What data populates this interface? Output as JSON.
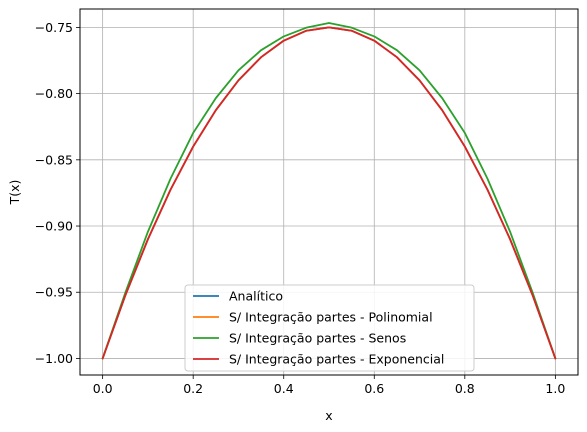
{
  "chart_data": {
    "type": "line",
    "title": "",
    "xlabel": "x",
    "ylabel": "T(x)",
    "xlim": [
      -0.05,
      1.05
    ],
    "ylim": [
      -1.0125,
      -0.7361
    ],
    "grid": true,
    "legend_position": "lower-center",
    "x_ticks": [
      {
        "value": 0.0,
        "label": "0.0"
      },
      {
        "value": 0.2,
        "label": "0.2"
      },
      {
        "value": 0.4,
        "label": "0.4"
      },
      {
        "value": 0.6,
        "label": "0.6"
      },
      {
        "value": 0.8,
        "label": "0.8"
      },
      {
        "value": 1.0,
        "label": "1.0"
      }
    ],
    "y_ticks": [
      {
        "value": -1.0,
        "label": "−1.00"
      },
      {
        "value": -0.95,
        "label": "−0.95"
      },
      {
        "value": -0.9,
        "label": "−0.90"
      },
      {
        "value": -0.85,
        "label": "−0.85"
      },
      {
        "value": -0.8,
        "label": "−0.80"
      },
      {
        "value": -0.75,
        "label": "−0.75"
      }
    ],
    "x": [
      0.0,
      0.05,
      0.1,
      0.15,
      0.2,
      0.25,
      0.3,
      0.35,
      0.4,
      0.45,
      0.5,
      0.55,
      0.6,
      0.65,
      0.7,
      0.75,
      0.8,
      0.85,
      0.9,
      0.95,
      1.0
    ],
    "series": [
      {
        "name": "Analítico",
        "color": "#1f77b4",
        "values": [
          -1.0,
          -0.9525,
          -0.91,
          -0.8725,
          -0.84,
          -0.8125,
          -0.79,
          -0.7725,
          -0.76,
          -0.7525,
          -0.75,
          -0.7525,
          -0.76,
          -0.7725,
          -0.79,
          -0.8125,
          -0.84,
          -0.8725,
          -0.91,
          -0.9525,
          -1.0
        ]
      },
      {
        "name": "S/ Integração partes - Polinomial",
        "color": "#ff7f0e",
        "values": [
          -1.0,
          -0.9525,
          -0.91,
          -0.8725,
          -0.84,
          -0.8125,
          -0.79,
          -0.7725,
          -0.76,
          -0.7525,
          -0.75,
          -0.7525,
          -0.76,
          -0.7725,
          -0.79,
          -0.8125,
          -0.84,
          -0.8725,
          -0.91,
          -0.9525,
          -1.0
        ]
      },
      {
        "name": "S/ Integração partes - Senos",
        "color": "#2ca02c",
        "values": [
          -1.0,
          -0.9505,
          -0.9043,
          -0.8642,
          -0.8297,
          -0.8034,
          -0.7824,
          -0.7672,
          -0.7568,
          -0.7502,
          -0.7467,
          -0.7502,
          -0.7568,
          -0.7672,
          -0.7824,
          -0.8034,
          -0.8297,
          -0.8642,
          -0.9043,
          -0.9505,
          -1.0
        ]
      },
      {
        "name": "S/ Integração partes - Exponencial",
        "color": "#d62728",
        "values": [
          -1.0,
          -0.9525,
          -0.91,
          -0.8725,
          -0.84,
          -0.8125,
          -0.79,
          -0.7725,
          -0.76,
          -0.7525,
          -0.75,
          -0.7525,
          -0.76,
          -0.7725,
          -0.79,
          -0.8125,
          -0.84,
          -0.8725,
          -0.91,
          -0.9525,
          -1.0
        ]
      }
    ]
  }
}
